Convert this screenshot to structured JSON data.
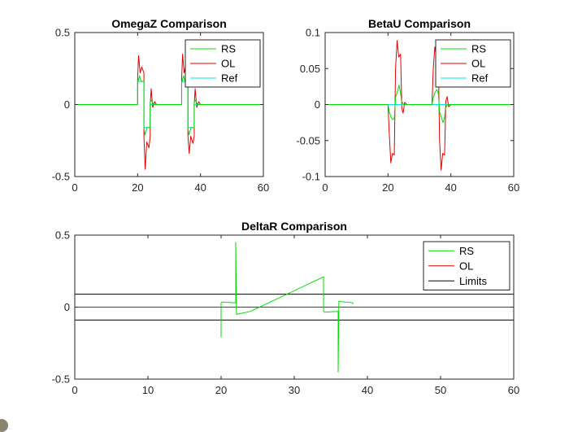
{
  "colors": {
    "RS": "#00dd00",
    "OL": "#dd0000",
    "Ref": "#00e5e5",
    "Limits": "#000000"
  },
  "chart_data": [
    {
      "type": "line",
      "title": "OmegaZ Comparison",
      "xlim": [
        0,
        60
      ],
      "ylim": [
        -0.5,
        0.5
      ],
      "xticks": [
        "0",
        "20",
        "40",
        "60"
      ],
      "yticks": [
        "-0.5",
        "0",
        "0.5"
      ],
      "legend_position": "top-right",
      "series": [
        {
          "name": "RS",
          "x": [
            0,
            20,
            20,
            20.6,
            21.1,
            22,
            22,
            22.3,
            23,
            24,
            24,
            24.4,
            25,
            34,
            34,
            34.6,
            35.1,
            36,
            36,
            36.3,
            37,
            38,
            38,
            38.4,
            39,
            60
          ],
          "y": [
            0,
            0,
            0.15,
            0.2,
            0.16,
            0.16,
            -0.16,
            -0.21,
            -0.16,
            -0.16,
            0.02,
            0.03,
            0,
            0,
            0.15,
            0.2,
            0.16,
            0.16,
            -0.16,
            -0.21,
            -0.16,
            -0.16,
            0.02,
            0.03,
            0,
            0
          ]
        },
        {
          "name": "OL",
          "x": [
            0,
            20,
            20,
            20.3,
            20.8,
            21.3,
            22,
            22,
            22.4,
            22.9,
            23.6,
            24,
            24,
            24.3,
            24.8,
            25.4,
            26,
            34,
            34,
            34.3,
            34.8,
            35.3,
            36,
            36,
            36.4,
            36.9,
            37.6,
            38,
            38,
            38.3,
            38.8,
            39.4,
            40,
            60
          ],
          "y": [
            0,
            0,
            0.18,
            0.34,
            0.22,
            0.26,
            0.22,
            -0.22,
            -0.45,
            -0.26,
            -0.3,
            -0.22,
            0,
            0.11,
            -0.02,
            0.02,
            0,
            0,
            0.18,
            0.35,
            0.22,
            0.27,
            0.22,
            -0.22,
            -0.34,
            -0.22,
            -0.27,
            -0.22,
            0,
            0.11,
            -0.02,
            0.02,
            0,
            0
          ]
        },
        {
          "name": "Ref",
          "x": [
            0,
            20,
            20,
            22,
            22,
            24,
            24,
            34,
            34,
            36,
            36,
            38,
            38,
            60
          ],
          "y": [
            0,
            0,
            0.16,
            0.16,
            -0.16,
            -0.16,
            0,
            0,
            0.16,
            0.16,
            -0.16,
            -0.16,
            0,
            0
          ]
        }
      ]
    },
    {
      "type": "line",
      "title": "BetaU Comparison",
      "xlim": [
        0,
        60
      ],
      "ylim": [
        -0.1,
        0.1
      ],
      "xticks": [
        "0",
        "20",
        "40",
        "60"
      ],
      "yticks": [
        "-0.1",
        "-0.05",
        "0",
        "0.05",
        "0.1"
      ],
      "legend_position": "top-right",
      "series": [
        {
          "name": "RS",
          "x": [
            0,
            20,
            20.4,
            21,
            21.5,
            22,
            22.4,
            23,
            23.5,
            24,
            24.3,
            25,
            34,
            34.4,
            35,
            35.5,
            36,
            36.4,
            37,
            37.5,
            38,
            38.3,
            39,
            60
          ],
          "y": [
            0,
            0,
            -0.01,
            -0.018,
            -0.021,
            -0.019,
            0.01,
            0.018,
            0.027,
            0.016,
            0.005,
            0,
            0,
            0.01,
            0.017,
            0.021,
            0.016,
            -0.01,
            -0.018,
            -0.025,
            -0.018,
            -0.005,
            0,
            0
          ]
        },
        {
          "name": "OL",
          "x": [
            0,
            20,
            20.4,
            20.9,
            21.4,
            22,
            22.4,
            22.9,
            23.4,
            24,
            24.4,
            24.8,
            25.3,
            26,
            34,
            34.4,
            34.9,
            35.4,
            36,
            36.4,
            36.9,
            37.4,
            38,
            38.4,
            38.8,
            39.3,
            40,
            60
          ],
          "y": [
            0,
            0,
            -0.04,
            -0.081,
            -0.068,
            -0.07,
            0.05,
            0.089,
            0.066,
            0.07,
            -0.005,
            -0.012,
            0.003,
            0,
            0,
            0.05,
            0.08,
            0.066,
            0.068,
            -0.05,
            -0.091,
            -0.068,
            -0.07,
            0.005,
            0.011,
            -0.003,
            0,
            0
          ]
        },
        {
          "name": "Ref",
          "x": [
            0,
            60
          ],
          "y": [
            0,
            0
          ]
        }
      ]
    },
    {
      "type": "line",
      "title": "DeltaR Comparison",
      "xlim": [
        0,
        60
      ],
      "ylim": [
        -0.5,
        0.5
      ],
      "xticks": [
        "0",
        "10",
        "20",
        "30",
        "40",
        "50",
        "60"
      ],
      "yticks": [
        "-0.5",
        "0",
        "0.5"
      ],
      "legend_position": "top-right",
      "series": [
        {
          "name": "RS",
          "x": [
            20,
            20,
            20.1,
            22,
            22,
            22.1,
            24,
            24,
            34,
            34,
            34.1,
            36,
            36,
            36.1,
            38,
            38
          ],
          "y": [
            -0.21,
            0.03,
            0.035,
            0.03,
            0.45,
            -0.05,
            -0.03,
            -0.03,
            0.21,
            -0.03,
            -0.035,
            -0.03,
            -0.45,
            0.04,
            0.03,
            0.02
          ]
        },
        {
          "name": "OL",
          "x": [
            0,
            60
          ],
          "y": [
            0,
            0
          ]
        },
        {
          "name": "Limits",
          "x": [
            0,
            60
          ],
          "y": [
            0.09,
            0.09
          ]
        },
        {
          "name": "Limits",
          "x": [
            0,
            60
          ],
          "y": [
            -0.09,
            -0.09
          ],
          "legend": false
        }
      ]
    }
  ]
}
